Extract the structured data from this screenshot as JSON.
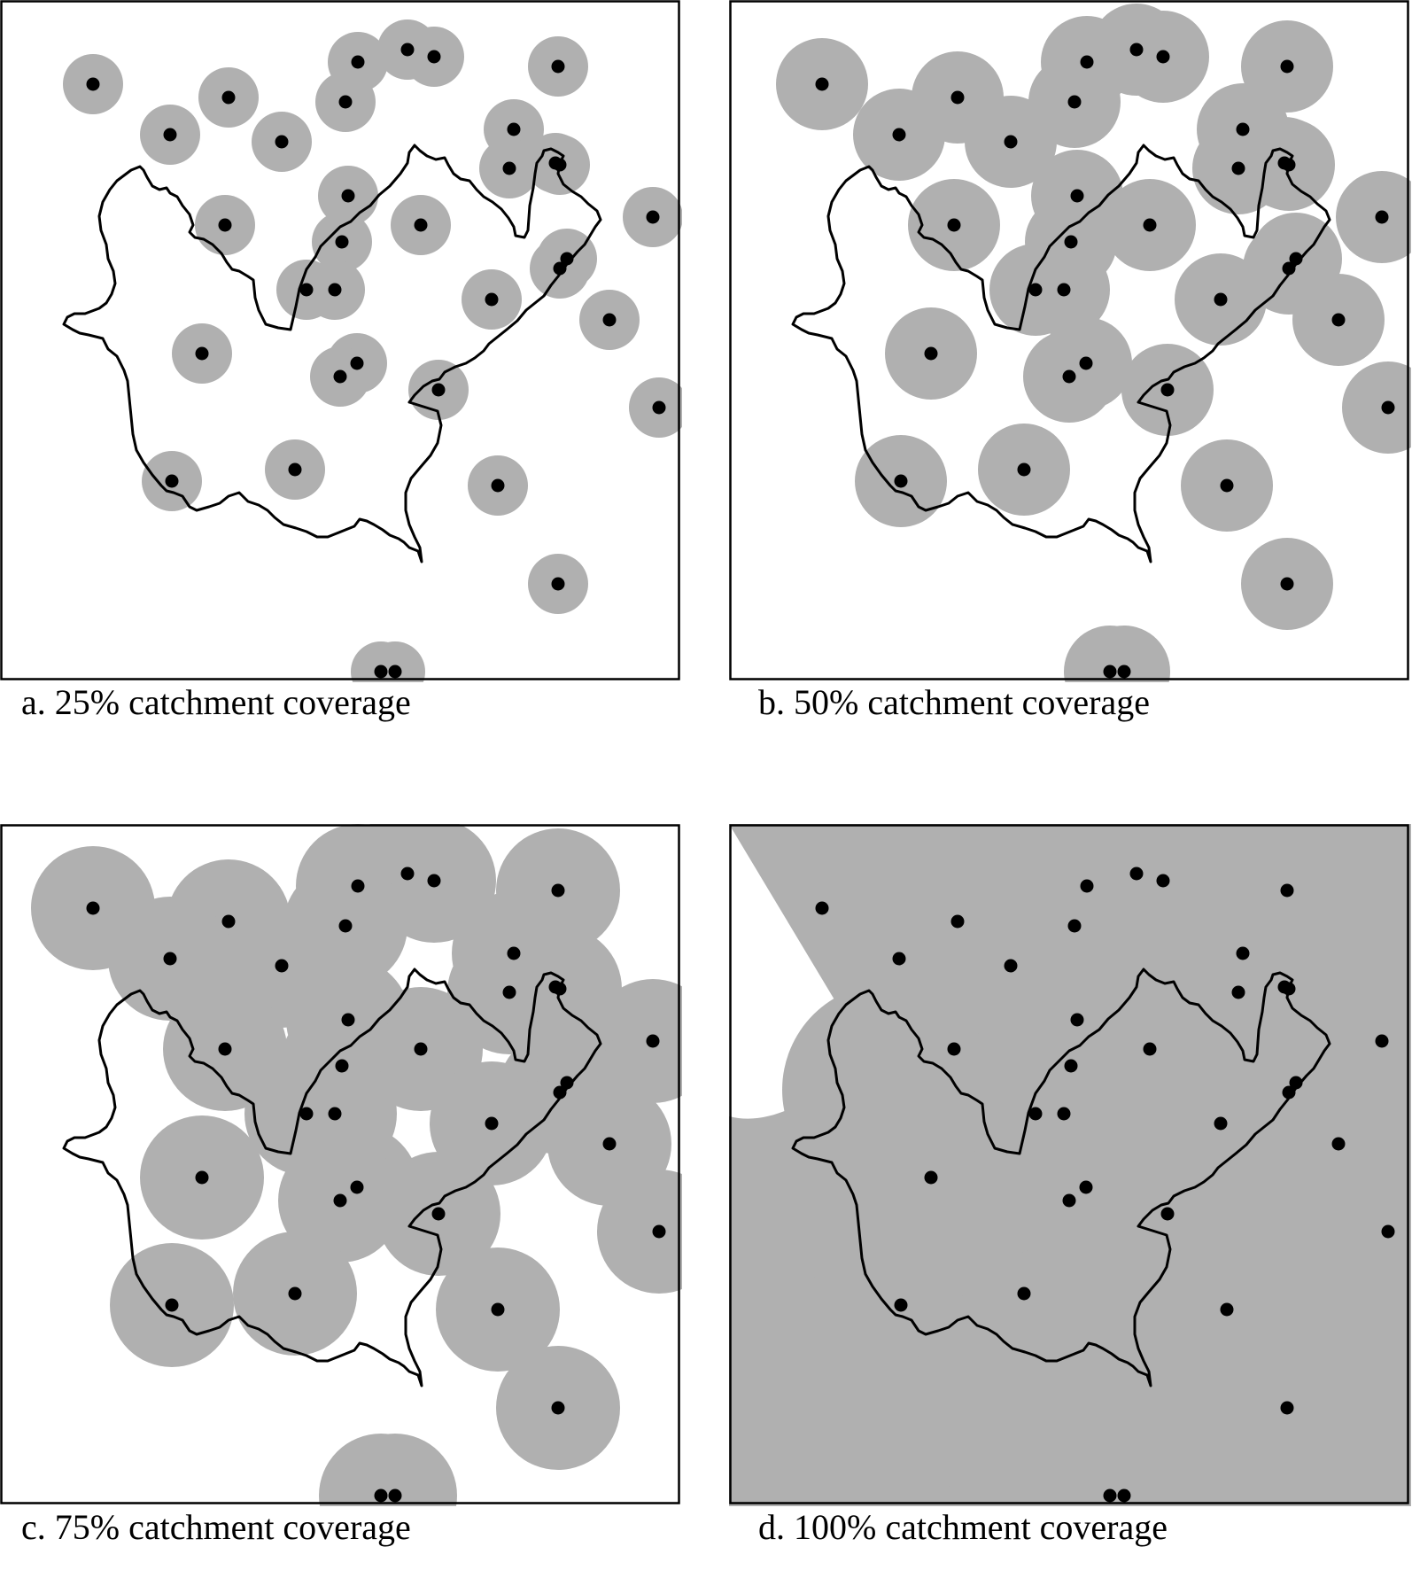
{
  "colors": {
    "buffer_fill": "#b0b0b0",
    "station_fill": "#000000",
    "boundary_stroke": "#000000",
    "frame_stroke": "#000000",
    "background": "#ffffff"
  },
  "panels": [
    {
      "id": "a",
      "caption": "a. 25% catchment coverage",
      "coverage_percent": 25
    },
    {
      "id": "b",
      "caption": "b. 50% catchment coverage",
      "coverage_percent": 50
    },
    {
      "id": "c",
      "caption": "c. 75% catchment coverage",
      "coverage_percent": 75
    },
    {
      "id": "d",
      "caption": "d. 100% catchment coverage",
      "coverage_percent": 100
    }
  ]
}
